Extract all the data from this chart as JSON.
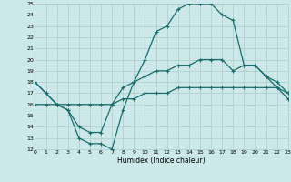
{
  "title": "",
  "xlabel": "Humidex (Indice chaleur)",
  "bg_color": "#cce8e8",
  "grid_color": "#aacccc",
  "line_color": "#1a6b6b",
  "ylim": [
    12,
    25
  ],
  "xlim": [
    0,
    23
  ],
  "yticks": [
    12,
    13,
    14,
    15,
    16,
    17,
    18,
    19,
    20,
    21,
    22,
    23,
    24,
    25
  ],
  "xticks": [
    0,
    1,
    2,
    3,
    4,
    5,
    6,
    7,
    8,
    9,
    10,
    11,
    12,
    13,
    14,
    15,
    16,
    17,
    18,
    19,
    20,
    21,
    22,
    23
  ],
  "line1_x": [
    0,
    1,
    2,
    3,
    4,
    5,
    6,
    7,
    8,
    9,
    10,
    11,
    12,
    13,
    14,
    15,
    16,
    17,
    18,
    19,
    20,
    21,
    22,
    23
  ],
  "line1_y": [
    18,
    17,
    16,
    15.5,
    13,
    12.5,
    12.5,
    12,
    15.5,
    18,
    20,
    22.5,
    23,
    24.5,
    25,
    25,
    25,
    24,
    23.5,
    19.5,
    19.5,
    18.5,
    17.5,
    16.5
  ],
  "line2_x": [
    0,
    1,
    2,
    3,
    4,
    5,
    6,
    7,
    8,
    9,
    10,
    11,
    12,
    13,
    14,
    15,
    16,
    17,
    18,
    19,
    20,
    21,
    22,
    23
  ],
  "line2_y": [
    18,
    17,
    16,
    15.5,
    14,
    13.5,
    13.5,
    16,
    17.5,
    18,
    18.5,
    19,
    19,
    19.5,
    19.5,
    20,
    20,
    20,
    19,
    19.5,
    19.5,
    18.5,
    18,
    17
  ],
  "line3_x": [
    0,
    1,
    2,
    3,
    4,
    5,
    6,
    7,
    8,
    9,
    10,
    11,
    12,
    13,
    14,
    15,
    16,
    17,
    18,
    19,
    20,
    21,
    22,
    23
  ],
  "line3_y": [
    16,
    16,
    16,
    16,
    16,
    16,
    16,
    16,
    16.5,
    16.5,
    17,
    17,
    17,
    17.5,
    17.5,
    17.5,
    17.5,
    17.5,
    17.5,
    17.5,
    17.5,
    17.5,
    17.5,
    17
  ]
}
